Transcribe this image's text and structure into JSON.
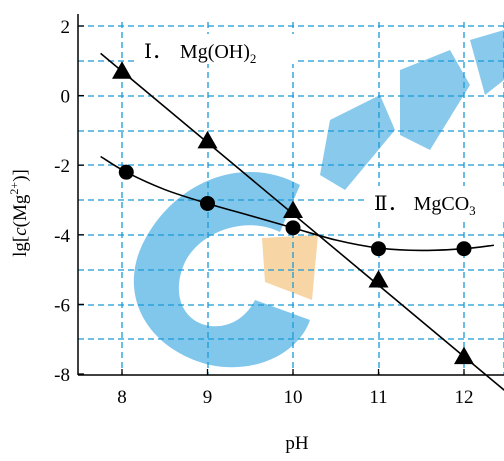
{
  "chart_data": {
    "type": "line",
    "xlabel": "pH",
    "ylabel": {
      "prefix": "lg[",
      "italic": "c",
      "paren_open": "(Mg",
      "sup": "2+",
      "suffix": ")]"
    },
    "xlim": [
      7.5,
      12.5
    ],
    "ylim": [
      -8.2,
      2
    ],
    "xticks": [
      8,
      9,
      10,
      11,
      12
    ],
    "yticks": [
      2,
      0,
      -2,
      -4,
      -6,
      -8
    ],
    "grid": true,
    "grid_style": "dashed",
    "colors": {
      "axis": "#000000",
      "grid": "#1a9bd7",
      "line": "#000000",
      "watermark_blue": "#3aa6e0",
      "watermark_orange": "#f5c27a"
    },
    "series": [
      {
        "name": "Mg(OH)2",
        "label_prefix": "Ⅰ．",
        "label_main": "Mg(OH)",
        "label_sub": "2",
        "marker": "triangle",
        "points": [
          [
            8,
            0.7
          ],
          [
            9,
            -1.3
          ],
          [
            10,
            -3.3
          ],
          [
            11,
            -5.3
          ],
          [
            12,
            -7.5
          ]
        ],
        "line_x_range": [
          7.75,
          12.5
        ]
      },
      {
        "name": "MgCO3",
        "label_prefix": "Ⅱ．",
        "label_main": "MgCO",
        "label_sub": "3",
        "marker": "circle",
        "points": [
          [
            8.05,
            -2.2
          ],
          [
            9,
            -3.1
          ],
          [
            10,
            -3.8
          ],
          [
            11,
            -4.4
          ],
          [
            12,
            -4.4
          ]
        ],
        "curve": [
          [
            7.75,
            -1.75
          ],
          [
            8.05,
            -2.2
          ],
          [
            8.5,
            -2.7
          ],
          [
            9,
            -3.1
          ],
          [
            9.5,
            -3.45
          ],
          [
            10,
            -3.8
          ],
          [
            10.5,
            -4.15
          ],
          [
            11,
            -4.38
          ],
          [
            11.5,
            -4.45
          ],
          [
            12,
            -4.4
          ],
          [
            12.35,
            -4.3
          ]
        ]
      }
    ]
  }
}
